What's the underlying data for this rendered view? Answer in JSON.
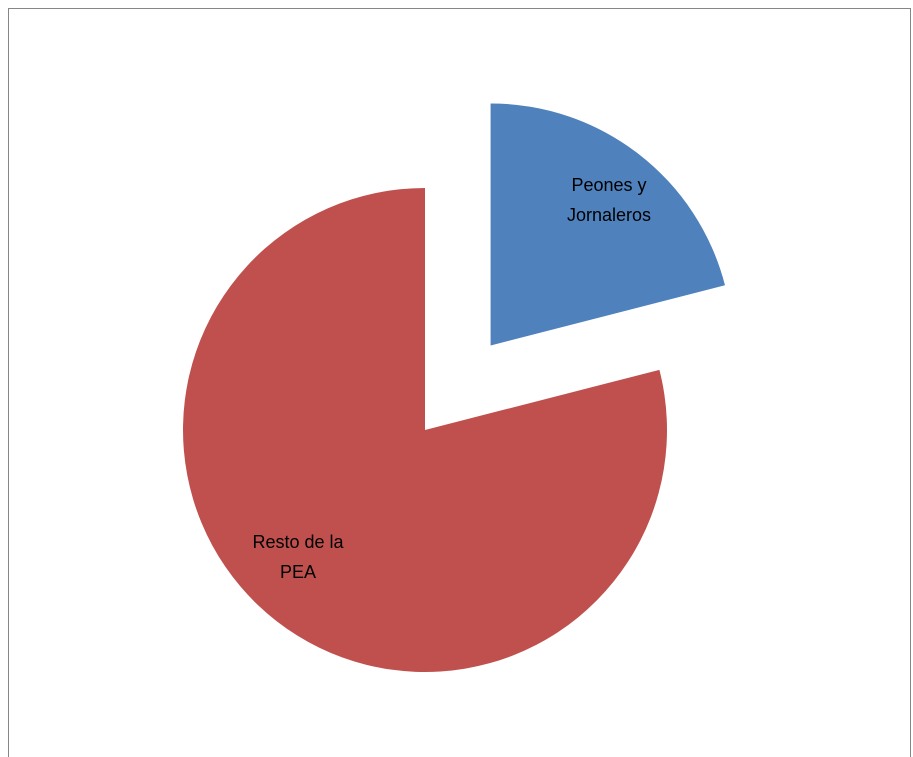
{
  "chart_data": {
    "type": "pie",
    "title": "",
    "legend": "none",
    "exploded": true,
    "slices": [
      {
        "label_lines": [
          "Peones y",
          "Jornaleros"
        ],
        "value": 21,
        "color": "#4F81BD",
        "exploded": true
      },
      {
        "label_lines": [
          "Resto de la",
          "PEA"
        ],
        "value": 79,
        "color": "#C0504D",
        "exploded": false
      }
    ]
  }
}
